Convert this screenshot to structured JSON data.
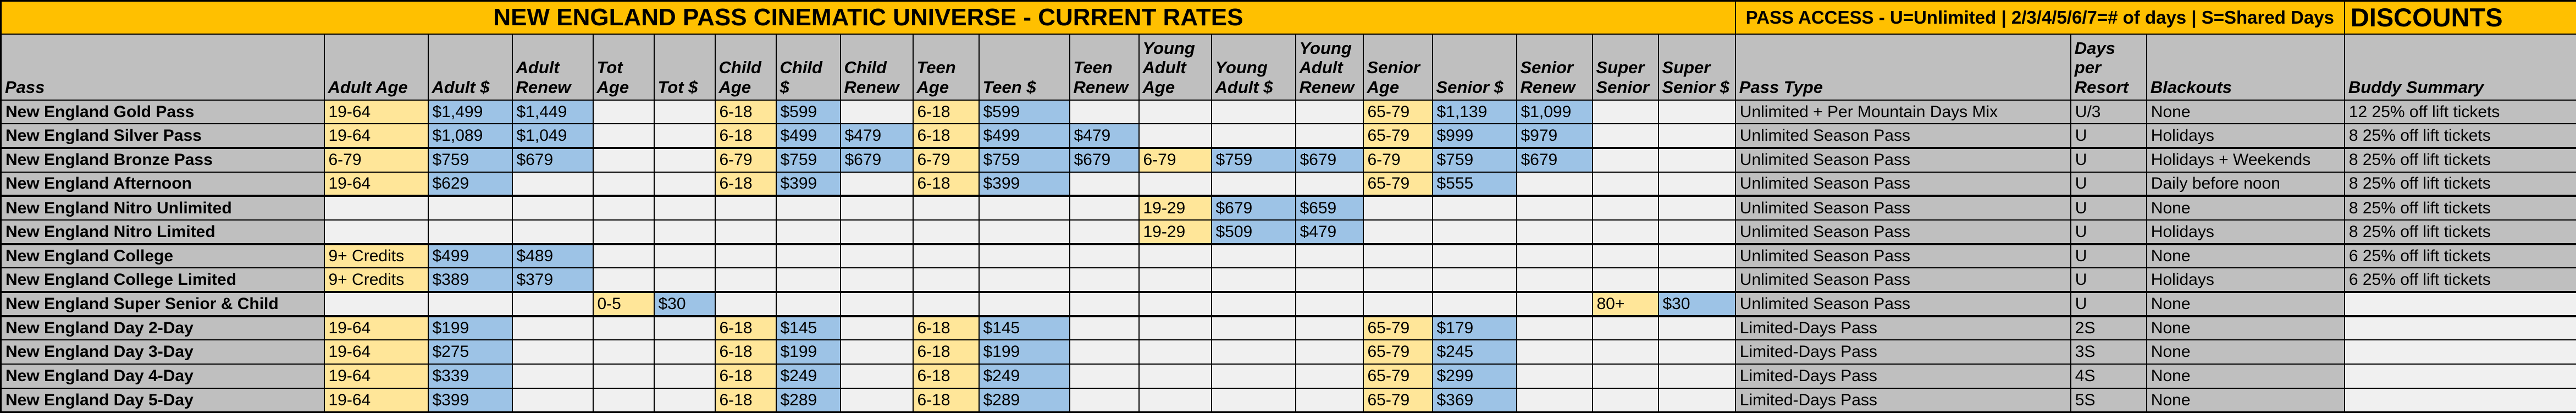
{
  "titles": {
    "main": "NEW ENGLAND PASS CINEMATIC UNIVERSE - CURRENT RATES",
    "pass_access": "PASS ACCESS - U=Unlimited | 2/3/4/5/6/7=# of days | S=Shared Days",
    "discounts": "DISCOUNTS"
  },
  "colors": {
    "banner_orange": "#FFC000",
    "header_gray": "#BFBFBF",
    "age_yellow": "#FFE699",
    "price_blue": "#9DC3E6",
    "empty_cell": "#F0F0F0",
    "border_black": "#000000"
  },
  "columns": [
    "Pass",
    "Adult Age",
    "Adult $",
    "Adult Renew",
    "Tot Age",
    "Tot $",
    "Child Age",
    "Child $",
    "Child Renew",
    "Teen Age",
    "Teen $",
    "Teen Renew",
    "Young Adult Age",
    "Young Adult $",
    "Young Adult Renew",
    "Senior Age",
    "Senior $",
    "Senior Renew",
    "Super Senior",
    "Super Senior $",
    "Pass Type",
    "Days per Resort",
    "Blackouts",
    "Buddy Summary"
  ],
  "rows": [
    [
      "New England Gold Pass",
      "19-64",
      "$1,499",
      "$1,449",
      "",
      "",
      "6-18",
      "$599",
      "",
      "6-18",
      "$599",
      "",
      "",
      "",
      "",
      "65-79",
      "$1,139",
      "$1,099",
      "",
      "",
      "Unlimited + Per Mountain Days Mix",
      "U/3",
      "None",
      "12 25% off lift tickets"
    ],
    [
      "New England Silver Pass",
      "19-64",
      "$1,089",
      "$1,049",
      "",
      "",
      "6-18",
      "$499",
      "$479",
      "6-18",
      "$499",
      "$479",
      "",
      "",
      "",
      "65-79",
      "$999",
      "$979",
      "",
      "",
      "Unlimited Season Pass",
      "U",
      "Holidays",
      "8 25% off lift tickets"
    ],
    [
      "New England Bronze Pass",
      "6-79",
      "$759",
      "$679",
      "",
      "",
      "6-79",
      "$759",
      "$679",
      "6-79",
      "$759",
      "$679",
      "6-79",
      "$759",
      "$679",
      "6-79",
      "$759",
      "$679",
      "",
      "",
      "Unlimited Season Pass",
      "U",
      "Holidays + Weekends",
      "8 25% off lift tickets"
    ],
    [
      "New England Afternoon",
      "19-64",
      "$629",
      "",
      "",
      "",
      "6-18",
      "$399",
      "",
      "6-18",
      "$399",
      "",
      "",
      "",
      "",
      "65-79",
      "$555",
      "",
      "",
      "",
      "Unlimited Season Pass",
      "U",
      "Daily before noon",
      "8 25% off lift tickets"
    ],
    [
      "New England Nitro Unlimited",
      "",
      "",
      "",
      "",
      "",
      "",
      "",
      "",
      "",
      "",
      "",
      "19-29",
      "$679",
      "$659",
      "",
      "",
      "",
      "",
      "",
      "Unlimited Season Pass",
      "U",
      "None",
      "8 25% off lift tickets"
    ],
    [
      "New England Nitro Limited",
      "",
      "",
      "",
      "",
      "",
      "",
      "",
      "",
      "",
      "",
      "",
      "19-29",
      "$509",
      "$479",
      "",
      "",
      "",
      "",
      "",
      "Unlimited Season Pass",
      "U",
      "Holidays",
      "8 25% off lift tickets"
    ],
    [
      "New England College",
      "9+ Credits",
      "$499",
      "$489",
      "",
      "",
      "",
      "",
      "",
      "",
      "",
      "",
      "",
      "",
      "",
      "",
      "",
      "",
      "",
      "",
      "Unlimited Season Pass",
      "U",
      "None",
      "6 25% off lift tickets"
    ],
    [
      "New England College Limited",
      "9+ Credits",
      "$389",
      "$379",
      "",
      "",
      "",
      "",
      "",
      "",
      "",
      "",
      "",
      "",
      "",
      "",
      "",
      "",
      "",
      "",
      "Unlimited Season Pass",
      "U",
      "Holidays",
      "6 25% off lift tickets"
    ],
    [
      "New England Super Senior & Child",
      "",
      "",
      "",
      "0-5",
      "$30",
      "",
      "",
      "",
      "",
      "",
      "",
      "",
      "",
      "",
      "",
      "",
      "",
      "80+",
      "$30",
      "Unlimited Season Pass",
      "U",
      "None",
      ""
    ],
    [
      "New England Day 2-Day",
      "19-64",
      "$199",
      "",
      "",
      "",
      "6-18",
      "$145",
      "",
      "6-18",
      "$145",
      "",
      "",
      "",
      "",
      "65-79",
      "$179",
      "",
      "",
      "",
      "Limited-Days Pass",
      "2S",
      "None",
      ""
    ],
    [
      "New England Day 3-Day",
      "19-64",
      "$275",
      "",
      "",
      "",
      "6-18",
      "$199",
      "",
      "6-18",
      "$199",
      "",
      "",
      "",
      "",
      "65-79",
      "$245",
      "",
      "",
      "",
      "Limited-Days Pass",
      "3S",
      "None",
      ""
    ],
    [
      "New England Day 4-Day",
      "19-64",
      "$339",
      "",
      "",
      "",
      "6-18",
      "$249",
      "",
      "6-18",
      "$249",
      "",
      "",
      "",
      "",
      "65-79",
      "$299",
      "",
      "",
      "",
      "Limited-Days Pass",
      "4S",
      "None",
      ""
    ],
    [
      "New England Day 5-Day",
      "19-64",
      "$399",
      "",
      "",
      "",
      "6-18",
      "$289",
      "",
      "6-18",
      "$289",
      "",
      "",
      "",
      "",
      "65-79",
      "$369",
      "",
      "",
      "",
      "Limited-Days Pass",
      "5S",
      "None",
      ""
    ]
  ]
}
